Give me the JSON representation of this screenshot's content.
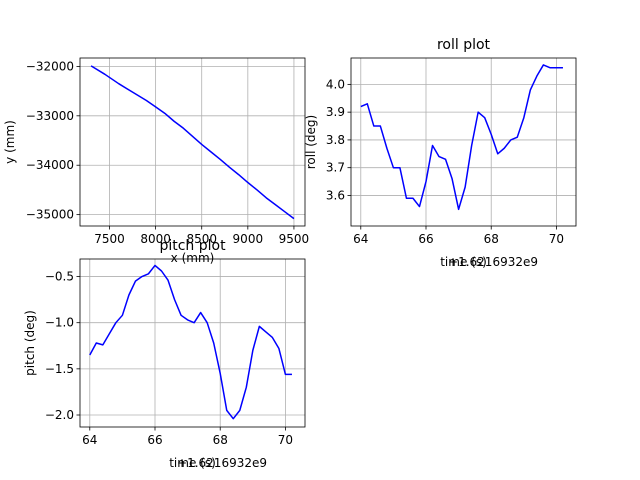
{
  "chart_data": [
    {
      "type": "line",
      "id": "xy",
      "title": "",
      "xlabel": "x (mm)",
      "ylabel": "y (mm)",
      "xlim": [
        7180,
        9620
      ],
      "ylim": [
        -35230,
        -31830
      ],
      "xticks": [
        7500,
        8000,
        8500,
        9000,
        9500
      ],
      "yticks": [
        -35000,
        -34000,
        -33000,
        -32000
      ],
      "xtick_labels": [
        "7500",
        "8000",
        "8500",
        "9000",
        "9500"
      ],
      "ytick_labels": [
        "−35000",
        "−34000",
        "−33000",
        "−32000"
      ],
      "grid": true,
      "series": [
        {
          "color": "#0000ff",
          "x": [
            7300,
            7450,
            7600,
            7750,
            7900,
            8000,
            8100,
            8200,
            8300,
            8500,
            8600,
            8700,
            8800,
            8900,
            9000,
            9100,
            9200,
            9300,
            9400,
            9500
          ],
          "y": [
            -31990,
            -32160,
            -32350,
            -32520,
            -32690,
            -32820,
            -32950,
            -33110,
            -33250,
            -33580,
            -33730,
            -33880,
            -34040,
            -34190,
            -34350,
            -34500,
            -34660,
            -34800,
            -34940,
            -35080
          ]
        }
      ]
    },
    {
      "type": "line",
      "id": "roll",
      "title": "roll plot",
      "xlabel": "time (s)",
      "ylabel": "roll (deg)",
      "offset_text": "+1.6216932e9",
      "xlim": [
        63.7,
        70.6
      ],
      "ylim": [
        3.49,
        4.095
      ],
      "xticks": [
        64,
        66,
        68,
        70
      ],
      "yticks": [
        3.6,
        3.7,
        3.8,
        3.9,
        4.0
      ],
      "xtick_labels": [
        "64",
        "66",
        "68",
        "70"
      ],
      "ytick_labels": [
        "3.6",
        "3.7",
        "3.8",
        "3.9",
        "4.0"
      ],
      "grid": true,
      "series": [
        {
          "color": "#0000ff",
          "x": [
            64.0,
            64.2,
            64.4,
            64.6,
            64.8,
            65.0,
            65.2,
            65.4,
            65.6,
            65.8,
            66.0,
            66.2,
            66.4,
            66.6,
            66.8,
            67.0,
            67.2,
            67.4,
            67.6,
            67.8,
            68.0,
            68.2,
            68.4,
            68.6,
            68.8,
            69.0,
            69.2,
            69.4,
            69.6,
            69.8,
            70.0,
            70.2
          ],
          "y": [
            3.92,
            3.93,
            3.85,
            3.85,
            3.77,
            3.7,
            3.7,
            3.59,
            3.59,
            3.56,
            3.65,
            3.78,
            3.74,
            3.73,
            3.66,
            3.55,
            3.63,
            3.78,
            3.9,
            3.88,
            3.82,
            3.75,
            3.77,
            3.8,
            3.81,
            3.88,
            3.98,
            4.03,
            4.07,
            4.06,
            4.06,
            4.06
          ]
        }
      ]
    },
    {
      "type": "line",
      "id": "pitch",
      "title": "pitch plot",
      "xlabel": "time (s)",
      "ylabel": "pitch (deg)",
      "offset_text": "+1.6216932e9",
      "xlim": [
        63.7,
        70.6
      ],
      "ylim": [
        -2.13,
        -0.31
      ],
      "xticks": [
        64,
        66,
        68,
        70
      ],
      "yticks": [
        -2.0,
        -1.5,
        -1.0,
        -0.5
      ],
      "xtick_labels": [
        "64",
        "66",
        "68",
        "70"
      ],
      "ytick_labels": [
        "−2.0",
        "−1.5",
        "−1.0",
        "−0.5"
      ],
      "grid": true,
      "series": [
        {
          "color": "#0000ff",
          "x": [
            64.0,
            64.2,
            64.4,
            64.6,
            64.8,
            65.0,
            65.2,
            65.4,
            65.6,
            65.8,
            66.0,
            66.2,
            66.4,
            66.6,
            66.8,
            67.0,
            67.2,
            67.4,
            67.6,
            67.8,
            68.0,
            68.2,
            68.4,
            68.6,
            68.8,
            69.0,
            69.2,
            69.4,
            69.6,
            69.8,
            70.0,
            70.2
          ],
          "y": [
            -1.35,
            -1.22,
            -1.24,
            -1.12,
            -1.0,
            -0.92,
            -0.7,
            -0.55,
            -0.5,
            -0.47,
            -0.38,
            -0.44,
            -0.54,
            -0.75,
            -0.92,
            -0.97,
            -1.0,
            -0.89,
            -1.0,
            -1.22,
            -1.55,
            -1.95,
            -2.04,
            -1.95,
            -1.7,
            -1.3,
            -1.04,
            -1.1,
            -1.16,
            -1.28,
            -1.56,
            -1.56
          ]
        }
      ]
    }
  ]
}
